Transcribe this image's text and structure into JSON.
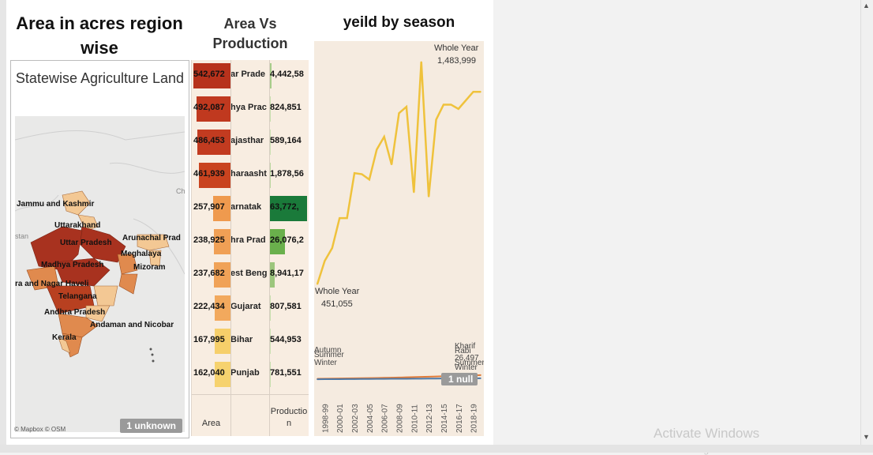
{
  "titles": {
    "area_region": "Area in acres region wise",
    "area_vs_production": "Area Vs Production",
    "yield_season": "yeild by season"
  },
  "map": {
    "title": "Statewise Agriculture Land",
    "credit": "© Mapbox © OSM",
    "unknown_badge": "1 unknown",
    "labels": [
      "Jammu and Kashmir",
      "Uttarakhand",
      "Uttar Pradesh",
      "Arunachal Prad",
      "Meghalaya",
      "Mizoram",
      "Madhya Pradesh",
      "ra and Nagar Haveli",
      "Telangana",
      "Andhra Pradesh",
      "Andaman and Nicobar",
      "Kerala",
      "stan",
      "Ch"
    ],
    "colors": {
      "high": "#a8321f",
      "mid": "#e08a4e",
      "low": "#f3c894",
      "background": "#e9e9e8"
    }
  },
  "table": {
    "col_area": "Area",
    "col_production": "Production",
    "rows": [
      {
        "area_label": "542,672",
        "area": 542672,
        "region": "Uttar Pradesh",
        "region_shown": "ar Prade",
        "production_label": "4,442,58",
        "production": 4442580,
        "bar_color": "#b7321c",
        "prod_color": "#a8cd8a"
      },
      {
        "area_label": "492,087",
        "area": 492087,
        "region": "Madhya Pradesh",
        "region_shown": "hya Prac",
        "production_label": "824,851",
        "production": 824851,
        "bar_color": "#c0391f",
        "prod_color": "#c8dfae"
      },
      {
        "area_label": "486,453",
        "area": 486453,
        "region": "Rajasthan",
        "region_shown": "ajasthar",
        "production_label": "589,164",
        "production": 589164,
        "bar_color": "#c23b20",
        "prod_color": "#cde2b4"
      },
      {
        "area_label": "461,939",
        "area": 461939,
        "region": "Maharashtra",
        "region_shown": "haraasht",
        "production_label": "1,878,56",
        "production": 1878560,
        "bar_color": "#c9431f",
        "prod_color": "#bcd8a0"
      },
      {
        "area_label": "257,907",
        "area": 257907,
        "region": "Karnataka",
        "region_shown": "arnatak",
        "production_label": "63,772,",
        "production": 63772000,
        "bar_color": "#ef9a4e",
        "prod_color": "#1a7a3a"
      },
      {
        "area_label": "238,925",
        "area": 238925,
        "region": "Andhra Pradesh",
        "region_shown": "hra Prad",
        "production_label": "26,076,2",
        "production": 26076200,
        "bar_color": "#f0a055",
        "prod_color": "#6ab04c"
      },
      {
        "area_label": "237,682",
        "area": 237682,
        "region": "West Bengal",
        "region_shown": "est Beng",
        "production_label": "8,941,17",
        "production": 8941170,
        "bar_color": "#f0a257",
        "prod_color": "#9cc67c"
      },
      {
        "area_label": "222,434",
        "area": 222434,
        "region": "Gujarat",
        "region_shown": "Gujarat",
        "production_label": "807,581",
        "production": 807581,
        "bar_color": "#f2a95d",
        "prod_color": "#c8dfae"
      },
      {
        "area_label": "167,995",
        "area": 167995,
        "region": "Bihar",
        "region_shown": "Bihar",
        "production_label": "544,953",
        "production": 544953,
        "bar_color": "#f6cf6a",
        "prod_color": "#cde2b4"
      },
      {
        "area_label": "162,040",
        "area": 162040,
        "region": "Punjab",
        "region_shown": "Punjab",
        "production_label": "781,551",
        "production": 781551,
        "bar_color": "#f6d26e",
        "prod_color": "#c8dfae"
      }
    ]
  },
  "chart_data": {
    "type": "line",
    "title": "yeild by season",
    "x": [
      "1997-98",
      "1998-99",
      "1999-00",
      "2000-01",
      "2001-02",
      "2002-03",
      "2003-04",
      "2004-05",
      "2005-06",
      "2006-07",
      "2007-08",
      "2008-09",
      "2009-10",
      "2010-11",
      "2011-12",
      "2012-13",
      "2013-14",
      "2014-15",
      "2015-16",
      "2016-17",
      "2017-18",
      "2018-19",
      "2019-20"
    ],
    "x_tick_labels": [
      "1998-99",
      "2000-01",
      "2002-03",
      "2004-05",
      "2006-07",
      "2008-09",
      "2010-11",
      "2012-13",
      "2014-15",
      "2016-17",
      "2018-19"
    ],
    "ylim": [
      0,
      1550000
    ],
    "series": [
      {
        "name": "Whole Year",
        "color": "#efc23c",
        "values": [
          451055,
          560000,
          620000,
          760000,
          760000,
          970000,
          965000,
          940000,
          1080000,
          1140000,
          1010000,
          1250000,
          1280000,
          880000,
          1490000,
          860000,
          1220000,
          1290000,
          1290000,
          1270000,
          1310000,
          1350000,
          1350000
        ]
      },
      {
        "name": "Kharif",
        "color": "#e07b39",
        "values": [
          9000,
          9500,
          10000,
          10500,
          11000,
          11500,
          12000,
          12500,
          13000,
          14000,
          14500,
          15000,
          16000,
          17000,
          18000,
          19000,
          20000,
          21000,
          22000,
          23000,
          24000,
          25000,
          26497
        ]
      },
      {
        "name": "Rabi",
        "color": "#4e79a7",
        "values": [
          7000,
          7200,
          7400,
          7600,
          7800,
          8000,
          8200,
          8400,
          8600,
          8800,
          9000,
          9200,
          9400,
          9600,
          9800,
          10000,
          10200,
          10400,
          10600,
          10800,
          11000,
          11200,
          11500
        ]
      }
    ],
    "annotations": [
      {
        "series": "Whole Year",
        "label": "Whole Year",
        "value_label": "451,055"
      },
      {
        "series": "Whole Year",
        "label": "Whole Year",
        "value_label": "1,483,999"
      }
    ],
    "end_labels": [
      "Kharif",
      "Rabi",
      "26,497",
      "Summer",
      "Winter"
    ],
    "start_labels": [
      "Autumn",
      "Summer",
      "Winter"
    ],
    "null_badge": "1 null",
    "background": "#f5ebe0"
  },
  "watermark": {
    "line1": "Activate Windows",
    "line2": "Go to Settings to activate Windows."
  }
}
